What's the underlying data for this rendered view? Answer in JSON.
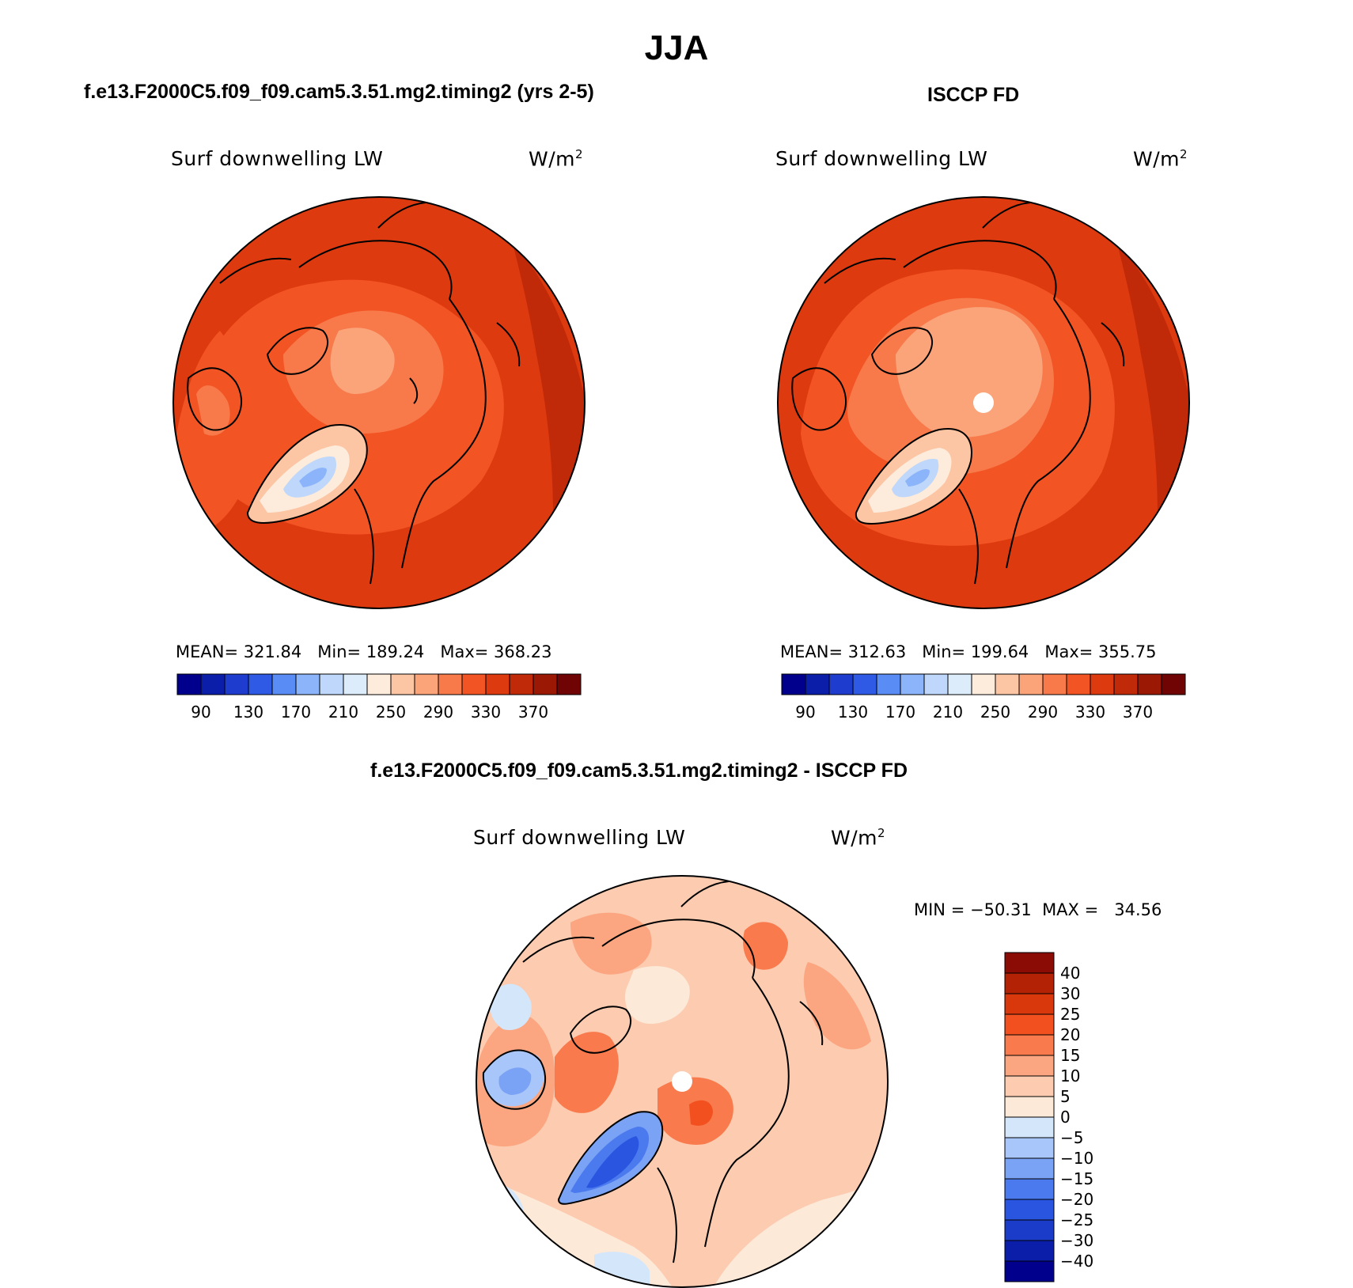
{
  "figure": {
    "title": "JJA"
  },
  "colors": {
    "abs_palette": [
      "#00008c",
      "#0a1eaa",
      "#1e3ccd",
      "#2e5ae6",
      "#5a8cf5",
      "#8cb4fa",
      "#bed7fa",
      "#dcecfa",
      "#fdebdb",
      "#fcc5a4",
      "#fba47a",
      "#f8794a",
      "#f25424",
      "#de3a10",
      "#c02a08",
      "#9b1805",
      "#700404"
    ],
    "diff_palette": [
      "#00008c",
      "#0a1eaa",
      "#1a3cc8",
      "#2a55e0",
      "#4a7aee",
      "#7aa2f5",
      "#a8c6fa",
      "#d4e6fa",
      "#fde9d8",
      "#fccbb0",
      "#fba680",
      "#f97a4c",
      "#f2511f",
      "#d8380c",
      "#b32205",
      "#8a0c04"
    ]
  },
  "panels": [
    {
      "id": "model",
      "header": "f.e13.F2000C5.f09_f09.cam5.3.51.mg2.timing2 (yrs 2-5)",
      "variable": "Surf downwelling LW",
      "units": "W/m",
      "units_power": "2",
      "mean_label": "MEAN=",
      "mean_value": "321.84",
      "min_label": "Min=",
      "min_value": "189.24",
      "max_label": "Max=",
      "max_value": "368.23",
      "ticks": [
        "90",
        "130",
        "170",
        "210",
        "250",
        "290",
        "330",
        "370"
      ]
    },
    {
      "id": "obs",
      "header": "ISCCP FD",
      "variable": "Surf downwelling LW",
      "units": "W/m",
      "units_power": "2",
      "mean_label": "MEAN=",
      "mean_value": "312.63",
      "min_label": "Min=",
      "min_value": "199.64",
      "max_label": "Max=",
      "max_value": "355.75",
      "ticks": [
        "90",
        "130",
        "170",
        "210",
        "250",
        "290",
        "330",
        "370"
      ]
    }
  ],
  "diff_panel": {
    "header": "f.e13.F2000C5.f09_f09.cam5.3.51.mg2.timing2 - ISCCP FD",
    "variable": "Surf downwelling LW",
    "units": "W/m",
    "units_power": "2",
    "min_label": "MIN =",
    "min_value": "−50.31",
    "max_label": "MAX =",
    "max_value": "34.56",
    "ticks": [
      "40",
      "30",
      "25",
      "20",
      "15",
      "10",
      "5",
      "0",
      "−5",
      "−10",
      "−15",
      "−20",
      "−25",
      "−30",
      "−40"
    ]
  }
}
